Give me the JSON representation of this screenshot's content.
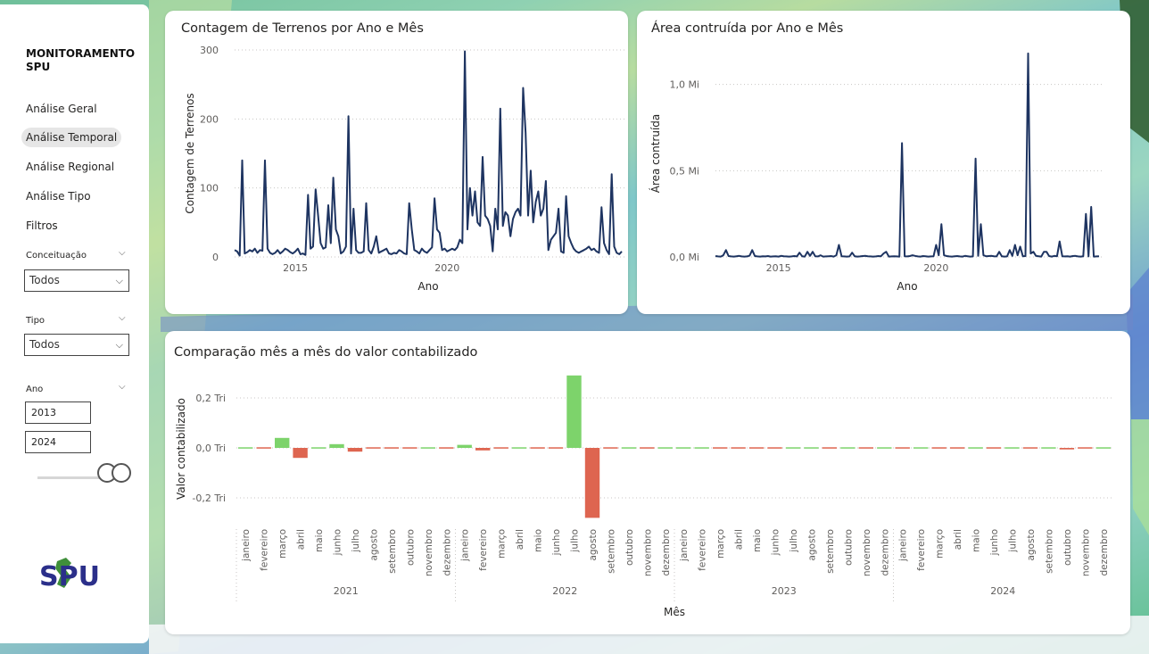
{
  "sidebar": {
    "title_line1": "MONITORAMENTO",
    "title_line2": "SPU",
    "nav": [
      {
        "label": "Análise Geral",
        "active": false
      },
      {
        "label": "Análise Temporal",
        "active": true
      },
      {
        "label": "Análise Regional",
        "active": false
      },
      {
        "label": "Análise Tipo",
        "active": false
      },
      {
        "label": "Filtros",
        "active": false
      }
    ],
    "conceituacao": {
      "label": "Conceituação",
      "value": "Todos"
    },
    "tipo": {
      "label": "Tipo",
      "value": "Todos"
    },
    "ano": {
      "label": "Ano",
      "start": "2013",
      "end": "2024"
    },
    "logo_text": "SPU"
  },
  "colors": {
    "line": "#1e3461",
    "positive": "#7dd36b",
    "negative": "#de6550",
    "grid": "#c8c6c4"
  },
  "chart_data": [
    {
      "type": "line",
      "title": "Contagem de Terrenos por Ano e Mês",
      "xlabel": "Ano",
      "ylabel": "Contagem de Terrenos",
      "x_ticks": [
        "2015",
        "2020"
      ],
      "y_ticks": [
        "0",
        "100",
        "200",
        "300"
      ],
      "ylim": [
        0,
        300
      ],
      "x_start": "2013-01",
      "x_step": "month",
      "values": [
        10,
        8,
        2,
        140,
        5,
        7,
        10,
        8,
        12,
        6,
        10,
        9,
        140,
        12,
        6,
        4,
        6,
        10,
        5,
        8,
        12,
        10,
        7,
        5,
        8,
        12,
        4,
        5,
        3,
        90,
        12,
        15,
        98,
        60,
        20,
        12,
        14,
        75,
        20,
        115,
        40,
        30,
        5,
        8,
        15,
        204,
        5,
        70,
        10,
        6,
        6,
        8,
        78,
        10,
        5,
        15,
        30,
        6,
        8,
        10,
        12,
        5,
        4,
        6,
        5,
        10,
        8,
        5,
        4,
        78,
        40,
        10,
        8,
        5,
        12,
        8,
        6,
        10,
        14,
        85,
        40,
        35,
        10,
        12,
        8,
        10,
        12,
        10,
        14,
        25,
        20,
        298,
        40,
        100,
        60,
        95,
        50,
        45,
        145,
        60,
        55,
        45,
        8,
        70,
        40,
        215,
        45,
        65,
        60,
        30,
        55,
        65,
        70,
        60,
        245,
        180,
        60,
        125,
        50,
        80,
        95,
        60,
        70,
        110,
        10,
        25,
        30,
        35,
        70,
        8,
        6,
        88,
        30,
        20,
        12,
        8,
        6,
        8,
        10,
        12,
        15,
        10,
        12,
        8,
        6,
        72,
        20,
        10,
        4,
        120,
        15,
        6,
        4,
        8
      ]
    },
    {
      "type": "line",
      "title": "Área contruída por Ano e Mês",
      "xlabel": "Ano",
      "ylabel": "Área contruída",
      "x_ticks": [
        "2015",
        "2020"
      ],
      "y_ticks": [
        "0,0 Mi",
        "0,5 Mi",
        "1,0 Mi"
      ],
      "ylim": [
        0,
        1.2
      ],
      "x_start": "2013-01",
      "x_step": "month",
      "values": [
        0.005,
        0.003,
        0.002,
        0.01,
        0.04,
        0.005,
        0.003,
        0.002,
        0.004,
        0.006,
        0.003,
        0.002,
        0.003,
        0.008,
        0.04,
        0.005,
        0.003,
        0.002,
        0.004,
        0.003,
        0.005,
        0.002,
        0.003,
        0.004,
        0.002,
        0.006,
        0.004,
        0.003,
        0.002,
        0.003,
        0.005,
        0.003,
        0.025,
        0.004,
        0.002,
        0.03,
        0.006,
        0.03,
        0.004,
        0.003,
        0.01,
        0.002,
        0.003,
        0.004,
        0.005,
        0.002,
        0.01,
        0.07,
        0.004,
        0.003,
        0.002,
        0.003,
        0.025,
        0.004,
        0.002,
        0.003,
        0.005,
        0.006,
        0.004,
        0.003,
        0.002,
        0.003,
        0.005,
        0.004,
        0.02,
        0.03,
        0.002,
        0.003,
        0.004,
        0.003,
        0.002,
        0.66,
        0.004,
        0.003,
        0.005,
        0.01,
        0.006,
        0.003,
        0.002,
        0.005,
        0.004,
        0.002,
        0.003,
        0.004,
        0.07,
        0.01,
        0.19,
        0.01,
        0.005,
        0.003,
        0.002,
        0.004,
        0.005,
        0.003,
        0.002,
        0.006,
        0.004,
        0.002,
        0.003,
        0.57,
        0.006,
        0.19,
        0.01,
        0.004,
        0.005,
        0.006,
        0.004,
        0.003,
        0.03,
        0.004,
        0.002,
        0.003,
        0.04,
        0.006,
        0.07,
        0.01,
        0.06,
        0.004,
        0.005,
        1.18,
        0.02,
        0.03,
        0.006,
        0.004,
        0.002,
        0.03,
        0.03,
        0.005,
        0.002,
        0.006,
        0.004,
        0.09,
        0.004,
        0.003,
        0.004,
        0.002,
        0.005,
        0.006,
        0.003,
        0.002,
        0.004,
        0.25,
        0.003,
        0.29,
        0.002,
        0.003,
        0.004
      ]
    },
    {
      "type": "bar",
      "title": "Comparação mês a mês do valor contabilizado",
      "xlabel": "Mês",
      "ylabel": "Valor contabilizado",
      "y_ticks": [
        "0,2 Tri",
        "0,0 Tri",
        "-0,2 Tri"
      ],
      "ylim": [
        -0.3,
        0.3
      ],
      "months": [
        "janeiro",
        "fevereiro",
        "março",
        "abril",
        "maio",
        "junho",
        "julho",
        "agosto",
        "setembro",
        "outubro",
        "novembro",
        "dezembro"
      ],
      "years": [
        "2021",
        "2022",
        "2023",
        "2024"
      ],
      "values": [
        0.002,
        -0.003,
        0.04,
        -0.04,
        0.003,
        0.015,
        -0.015,
        -0.002,
        -0.002,
        -0.002,
        0.002,
        -0.002,
        0.012,
        -0.01,
        -0.003,
        0.003,
        -0.002,
        -0.002,
        0.29,
        -0.28,
        -0.003,
        0.003,
        -0.004,
        0.002,
        0.002,
        0.005,
        -0.005,
        -0.002,
        -0.002,
        -0.002,
        0.002,
        0.002,
        -0.002,
        0.004,
        -0.004,
        0.002,
        -0.002,
        0.002,
        -0.002,
        -0.002,
        0.005,
        -0.005,
        0.002,
        -0.002,
        0.004,
        -0.006,
        -0.003,
        0.003
      ]
    }
  ]
}
